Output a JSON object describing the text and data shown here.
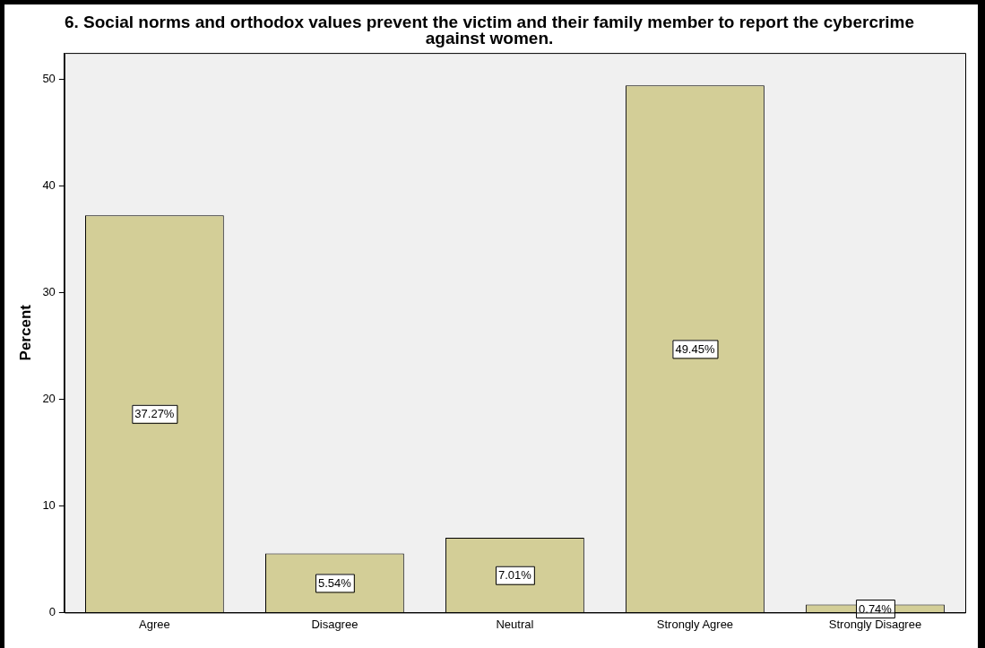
{
  "chart_data": {
    "type": "bar",
    "title": "6. Social norms and orthodox values prevent the victim and their family member to report the cybercrime against women.",
    "ylabel": "Percent",
    "categories": [
      "Agree",
      "Disagree",
      "Neutral",
      "Strongly Agree",
      "Strongly Disagree"
    ],
    "values": [
      37.27,
      5.54,
      7.01,
      49.45,
      0.74
    ],
    "value_labels": [
      "37.27%",
      "5.54%",
      "7.01%",
      "49.45%",
      "0.74%"
    ],
    "color": "#d3ce97",
    "ylim": [
      0,
      52.5
    ],
    "yticks": [
      0,
      10,
      20,
      30,
      40,
      50
    ],
    "grid": false,
    "legend": false
  }
}
